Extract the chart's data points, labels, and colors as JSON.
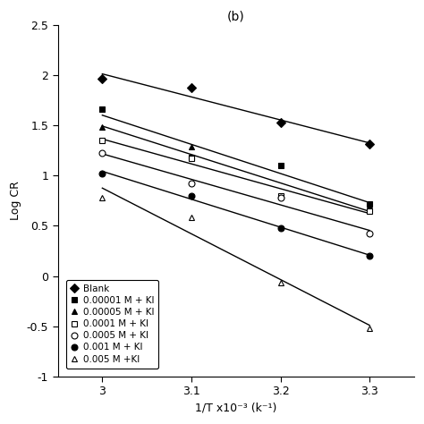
{
  "title": "(b)",
  "xlabel": "1/T x10⁻³ (k⁻¹)",
  "ylabel": "Log CR",
  "xlim": [
    2.95,
    3.35
  ],
  "ylim": [
    -1.0,
    2.5
  ],
  "xticks": [
    3.0,
    3.1,
    3.2,
    3.3
  ],
  "xticklabels": [
    "3",
    "3.1",
    "3.2",
    "3.3"
  ],
  "yticks": [
    -1.0,
    -0.5,
    0.0,
    0.5,
    1.0,
    1.5,
    2.0,
    2.5
  ],
  "series": [
    {
      "label": "Blank",
      "marker": "D",
      "filled": true,
      "x": [
        3.0,
        3.1,
        3.2,
        3.3
      ],
      "y": [
        1.96,
        1.87,
        1.53,
        1.31
      ]
    },
    {
      "label": "0.00001 M + KI",
      "marker": "s",
      "filled": true,
      "x": [
        3.0,
        3.1,
        3.2,
        3.3
      ],
      "y": [
        1.66,
        1.18,
        1.1,
        0.72
      ]
    },
    {
      "label": "0.00005 M + KI",
      "marker": "^",
      "filled": true,
      "x": [
        3.0,
        3.1,
        3.2,
        3.3
      ],
      "y": [
        1.48,
        1.29,
        0.8,
        0.7
      ]
    },
    {
      "label": "0.0001 M + KI",
      "marker": "s",
      "filled": false,
      "x": [
        3.0,
        3.1,
        3.2,
        3.3
      ],
      "y": [
        1.35,
        1.17,
        0.8,
        0.65
      ]
    },
    {
      "label": "0.0005 M + KI",
      "marker": "o",
      "filled": false,
      "x": [
        3.0,
        3.1,
        3.2,
        3.3
      ],
      "y": [
        1.22,
        0.92,
        0.78,
        0.42
      ]
    },
    {
      "label": "0.001 M + KI",
      "marker": "o",
      "filled": true,
      "x": [
        3.0,
        3.1,
        3.2,
        3.3
      ],
      "y": [
        1.02,
        0.8,
        0.48,
        0.2
      ]
    },
    {
      "label": "0.005 M +KI",
      "marker": "^",
      "filled": false,
      "x": [
        3.0,
        3.1,
        3.2,
        3.3
      ],
      "y": [
        0.78,
        0.58,
        -0.07,
        -0.52
      ]
    }
  ],
  "background_color": "#ffffff",
  "figure_bg": "#ffffff"
}
